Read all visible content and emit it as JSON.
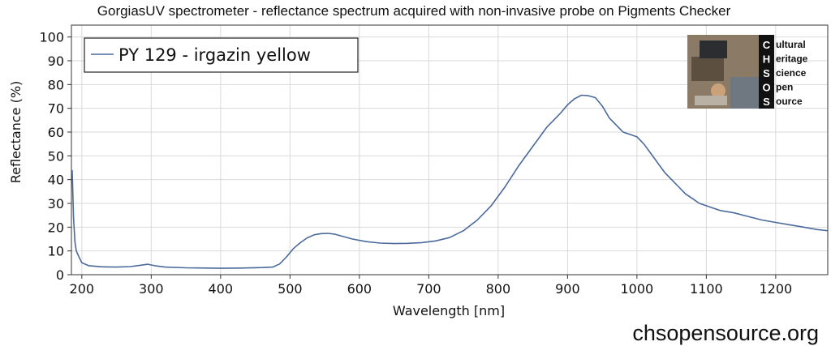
{
  "chart_data": {
    "type": "line",
    "title": "GorgiasUV spectrometer - reflectance spectrum acquired with non-invasive probe on Pigments Checker",
    "xlabel": "Wavelength [nm]",
    "ylabel": "Reflectance (%)",
    "xlim": [
      185,
      1275
    ],
    "ylim": [
      0,
      105
    ],
    "xticks": [
      200,
      300,
      400,
      500,
      600,
      700,
      800,
      900,
      1000,
      1100,
      1200
    ],
    "yticks": [
      0,
      10,
      20,
      30,
      40,
      50,
      60,
      70,
      80,
      90,
      100
    ],
    "grid": true,
    "legend_position": "top-left",
    "series": [
      {
        "name": "PY 129 - irgazin yellow",
        "color": "#4a6a9c",
        "x": [
          186,
          187,
          188,
          190,
          192,
          195,
          200,
          210,
          230,
          250,
          270,
          285,
          295,
          305,
          320,
          350,
          380,
          400,
          430,
          460,
          475,
          485,
          495,
          505,
          515,
          525,
          535,
          545,
          555,
          565,
          575,
          590,
          610,
          630,
          650,
          670,
          690,
          710,
          730,
          750,
          770,
          790,
          810,
          830,
          850,
          870,
          880,
          890,
          900,
          910,
          920,
          930,
          940,
          950,
          960,
          970,
          980,
          990,
          1000,
          1010,
          1020,
          1030,
          1040,
          1050,
          1060,
          1070,
          1080,
          1090,
          1100,
          1110,
          1120,
          1140,
          1160,
          1180,
          1200,
          1220,
          1240,
          1260,
          1275
        ],
        "y": [
          44,
          35,
          24,
          14,
          10,
          8,
          5,
          3.8,
          3.3,
          3.2,
          3.4,
          4.0,
          4.4,
          3.8,
          3.2,
          2.9,
          2.8,
          2.7,
          2.8,
          3.0,
          3.2,
          4.5,
          7.5,
          11,
          13.5,
          15.5,
          16.8,
          17.3,
          17.4,
          17.0,
          16.2,
          15.0,
          13.9,
          13.3,
          13.1,
          13.2,
          13.5,
          14.2,
          15.6,
          18.5,
          23,
          29,
          37,
          46,
          54,
          62,
          65,
          68,
          71.5,
          74,
          75.5,
          75.3,
          74.5,
          71,
          66,
          63,
          60,
          59,
          58,
          55,
          51,
          47,
          43,
          40,
          37,
          34,
          32,
          30,
          29,
          28,
          27,
          26,
          24.5,
          23,
          22,
          21,
          20,
          19,
          18.5
        ]
      }
    ]
  },
  "logo": {
    "letters": [
      "C",
      "H",
      "S",
      "O",
      "S"
    ],
    "words": [
      "ultural",
      "eritage",
      "cience",
      "pen",
      "ource"
    ]
  },
  "footer": "chsopensource.org"
}
